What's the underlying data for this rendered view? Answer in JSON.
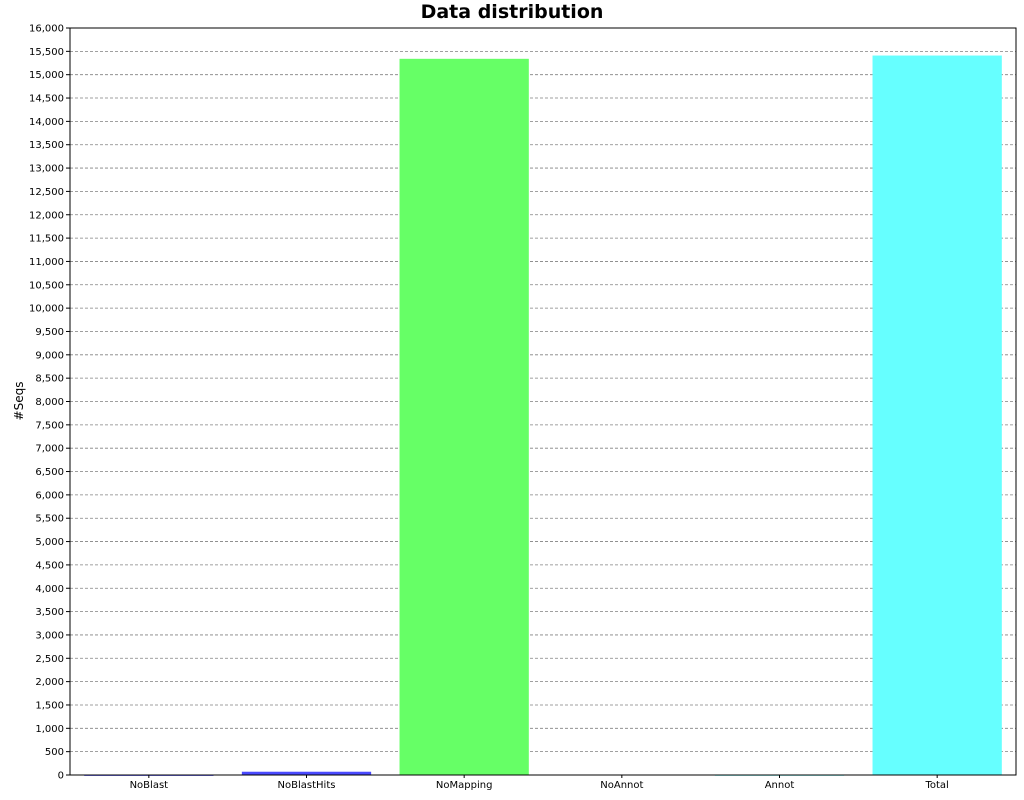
{
  "chart_data": {
    "type": "bar",
    "title": "Data distribution",
    "xlabel": "",
    "ylabel": "#Seqs",
    "categories": [
      "NoBlast",
      "NoBlastHits",
      "NoMapping",
      "NoAnnot",
      "Annot",
      "Total"
    ],
    "values": [
      3,
      70,
      15340,
      0,
      5,
      15410
    ],
    "colors": [
      "#4a4aff",
      "#4a4aff",
      "#66ff66",
      "#66ffff",
      "#66ffff",
      "#66ffff"
    ],
    "ylim": [
      0,
      16000
    ],
    "ytick_step": 500,
    "grid": true,
    "legend": "none"
  }
}
